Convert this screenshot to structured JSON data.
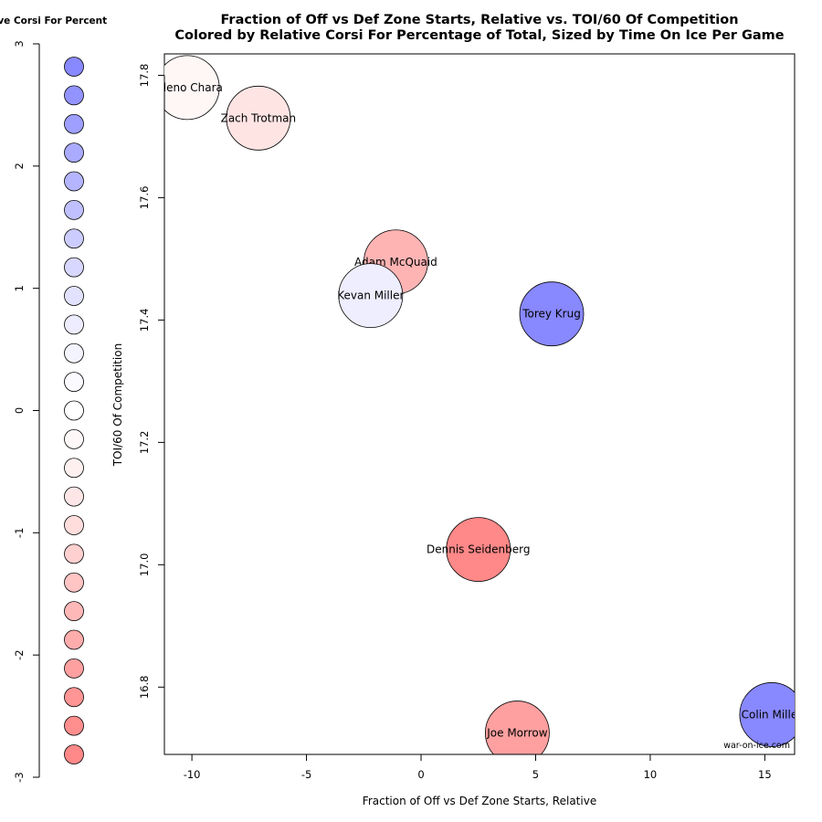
{
  "chart_data": {
    "type": "scatter",
    "title": "Fraction of Off vs Def Zone Starts, Relative vs. TOI/60 Of Competition",
    "subtitle": "Colored by Relative Corsi For Percentage of Total, Sized by Time On Ice Per Game",
    "xlabel": "Fraction of Off vs Def Zone Starts, Relative",
    "ylabel": "TOI/60 Of Competition",
    "xlim": [
      -11.2,
      16.3
    ],
    "ylim": [
      16.69,
      17.835
    ],
    "x_ticks": [
      -10,
      -5,
      0,
      5,
      10,
      15
    ],
    "y_ticks": [
      16.8,
      17.0,
      17.2,
      17.4,
      17.6,
      17.8
    ],
    "credit": "war-on-ice.com",
    "points": [
      {
        "name": "Zdeno Chara",
        "x": -10.2,
        "y": 17.78,
        "color": "#fff6f6"
      },
      {
        "name": "Zach Trotman",
        "x": -7.1,
        "y": 17.73,
        "color": "#ffe4e4"
      },
      {
        "name": "Adam McQuaid",
        "x": -1.1,
        "y": 17.495,
        "color": "#ffb4b4"
      },
      {
        "name": "Kevan Miller",
        "x": -2.2,
        "y": 17.44,
        "color": "#eeeeff"
      },
      {
        "name": "Torey Krug",
        "x": 5.7,
        "y": 17.41,
        "color": "#8888ff"
      },
      {
        "name": "Dennis Seidenberg",
        "x": 2.5,
        "y": 17.025,
        "color": "#ff8888"
      },
      {
        "name": "Joe Morrow",
        "x": 4.2,
        "y": 16.725,
        "color": "#ffa0a0"
      },
      {
        "name": "Colin Miller",
        "x": 15.3,
        "y": 16.755,
        "color": "#8888ff"
      }
    ],
    "legend": {
      "title": "Relative Corsi For Percent",
      "range": [
        -3,
        3
      ],
      "ticks": [
        "3",
        "2",
        "1",
        "0",
        "-1",
        "-2",
        "-3"
      ],
      "swatch_colors": [
        "#8888ff",
        "#9393ff",
        "#9f9fff",
        "#aaaaff",
        "#b5b5ff",
        "#c0c0ff",
        "#ccccff",
        "#d7d7ff",
        "#e2e2ff",
        "#ededff",
        "#f4f4ff",
        "#fafaff",
        "#ffffff",
        "#fff8f8",
        "#fff0f0",
        "#ffe6e6",
        "#ffdddd",
        "#ffd0d0",
        "#ffc4c4",
        "#ffb8b8",
        "#ffacac",
        "#ffa0a0",
        "#ff9595",
        "#ff8e8e",
        "#ff8888"
      ]
    }
  }
}
